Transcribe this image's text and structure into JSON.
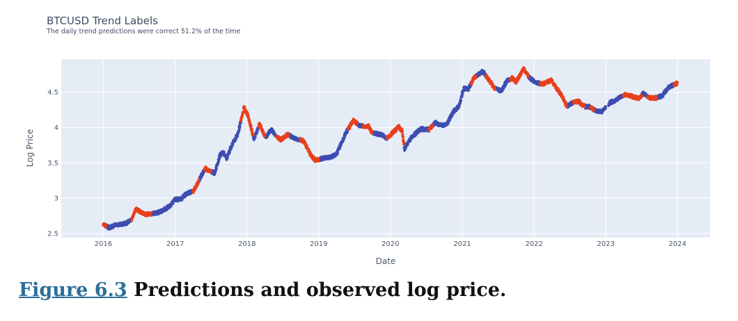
{
  "chart_data": {
    "type": "scatter",
    "title": "BTCUSD Trend Labels",
    "subtitle": "The daily trend predictions were correct 51.2% of the time",
    "xlabel": "Date",
    "ylabel": "Log Price",
    "x_tick_labels": [
      "2016",
      "2017",
      "2018",
      "2019",
      "2020",
      "2021",
      "2022",
      "2023",
      "2024"
    ],
    "y_tick_labels": [
      "2.5",
      "3",
      "3.5",
      "4",
      "4.5"
    ],
    "y_ticks": [
      2.5,
      3,
      3.5,
      4,
      4.5
    ],
    "xlim": [
      "2015-06-01",
      "2024-06-15"
    ],
    "ylim": [
      2.44,
      4.97
    ],
    "grid": true,
    "colors": {
      "background": "#e5ecf6",
      "grid": "#ffffff",
      "series_a": "#3e4db0",
      "series_b": "#e8401c"
    },
    "price_path": [
      [
        "2016-01-01",
        2.63
      ],
      [
        "2016-01-15",
        2.6
      ],
      [
        "2016-02-01",
        2.58
      ],
      [
        "2016-03-01",
        2.62
      ],
      [
        "2016-04-01",
        2.63
      ],
      [
        "2016-05-01",
        2.65
      ],
      [
        "2016-05-25",
        2.69
      ],
      [
        "2016-06-15",
        2.85
      ],
      [
        "2016-07-01",
        2.82
      ],
      [
        "2016-08-01",
        2.77
      ],
      [
        "2016-09-01",
        2.78
      ],
      [
        "2016-10-01",
        2.79
      ],
      [
        "2016-11-01",
        2.83
      ],
      [
        "2016-12-01",
        2.88
      ],
      [
        "2017-01-01",
        2.98
      ],
      [
        "2017-02-01",
        2.99
      ],
      [
        "2017-03-01",
        3.07
      ],
      [
        "2017-04-01",
        3.09
      ],
      [
        "2017-05-01",
        3.24
      ],
      [
        "2017-06-01",
        3.42
      ],
      [
        "2017-07-01",
        3.38
      ],
      [
        "2017-07-20",
        3.35
      ],
      [
        "2017-08-15",
        3.6
      ],
      [
        "2017-09-01",
        3.65
      ],
      [
        "2017-09-20",
        3.56
      ],
      [
        "2017-10-15",
        3.75
      ],
      [
        "2017-11-15",
        3.9
      ],
      [
        "2017-12-17",
        4.28
      ],
      [
        "2018-01-05",
        4.18
      ],
      [
        "2018-02-06",
        3.84
      ],
      [
        "2018-03-05",
        4.05
      ],
      [
        "2018-04-05",
        3.86
      ],
      [
        "2018-05-05",
        3.97
      ],
      [
        "2018-06-20",
        3.82
      ],
      [
        "2018-07-25",
        3.9
      ],
      [
        "2018-09-01",
        3.85
      ],
      [
        "2018-10-15",
        3.81
      ],
      [
        "2018-11-20",
        3.62
      ],
      [
        "2018-12-15",
        3.53
      ],
      [
        "2019-01-15",
        3.56
      ],
      [
        "2019-03-01",
        3.58
      ],
      [
        "2019-04-01",
        3.62
      ],
      [
        "2019-05-15",
        3.9
      ],
      [
        "2019-06-26",
        4.1
      ],
      [
        "2019-08-01",
        4.02
      ],
      [
        "2019-09-10",
        4.02
      ],
      [
        "2019-10-01",
        3.92
      ],
      [
        "2019-11-15",
        3.9
      ],
      [
        "2019-12-15",
        3.85
      ],
      [
        "2020-02-12",
        4.01
      ],
      [
        "2020-03-01",
        3.95
      ],
      [
        "2020-03-13",
        3.7
      ],
      [
        "2020-04-15",
        3.85
      ],
      [
        "2020-06-01",
        3.98
      ],
      [
        "2020-07-15",
        3.97
      ],
      [
        "2020-08-15",
        4.07
      ],
      [
        "2020-09-15",
        4.03
      ],
      [
        "2020-10-15",
        4.05
      ],
      [
        "2020-11-15",
        4.22
      ],
      [
        "2020-12-15",
        4.3
      ],
      [
        "2021-01-08",
        4.55
      ],
      [
        "2021-02-01",
        4.55
      ],
      [
        "2021-03-01",
        4.7
      ],
      [
        "2021-04-14",
        4.8
      ],
      [
        "2021-05-15",
        4.68
      ],
      [
        "2021-06-15",
        4.55
      ],
      [
        "2021-07-20",
        4.52
      ],
      [
        "2021-08-15",
        4.66
      ],
      [
        "2021-09-10",
        4.7
      ],
      [
        "2021-10-01",
        4.65
      ],
      [
        "2021-11-10",
        4.83
      ],
      [
        "2021-12-10",
        4.7
      ],
      [
        "2022-01-15",
        4.63
      ],
      [
        "2022-02-15",
        4.62
      ],
      [
        "2022-03-28",
        4.67
      ],
      [
        "2022-04-15",
        4.6
      ],
      [
        "2022-05-15",
        4.48
      ],
      [
        "2022-06-18",
        4.3
      ],
      [
        "2022-07-15",
        4.35
      ],
      [
        "2022-08-15",
        4.37
      ],
      [
        "2022-09-15",
        4.3
      ],
      [
        "2022-10-15",
        4.29
      ],
      [
        "2022-11-10",
        4.23
      ],
      [
        "2022-12-15",
        4.23
      ],
      [
        "2023-01-20",
        4.35
      ],
      [
        "2023-02-15",
        4.38
      ],
      [
        "2023-03-20",
        4.44
      ],
      [
        "2023-04-15",
        4.47
      ],
      [
        "2023-05-15",
        4.44
      ],
      [
        "2023-06-15",
        4.41
      ],
      [
        "2023-07-10",
        4.48
      ],
      [
        "2023-08-15",
        4.42
      ],
      [
        "2023-09-15",
        4.42
      ],
      [
        "2023-10-15",
        4.45
      ],
      [
        "2023-11-15",
        4.57
      ],
      [
        "2023-12-31",
        4.63
      ]
    ],
    "series": [
      {
        "color": "series_a",
        "segments": [
          [
            "2016-01-15",
            "2016-05-25"
          ],
          [
            "2016-09-01",
            "2017-04-01"
          ],
          [
            "2017-05-01",
            "2017-06-01"
          ],
          [
            "2017-07-01",
            "2017-12-01"
          ],
          [
            "2018-02-01",
            "2018-03-01"
          ],
          [
            "2018-04-01",
            "2018-06-01"
          ],
          [
            "2018-08-01",
            "2018-10-01"
          ],
          [
            "2019-01-01",
            "2019-06-01"
          ],
          [
            "2019-07-15",
            "2019-08-15"
          ],
          [
            "2019-10-01",
            "2019-12-15"
          ],
          [
            "2020-03-10",
            "2020-07-15"
          ],
          [
            "2020-08-01",
            "2021-02-15"
          ],
          [
            "2021-03-10",
            "2021-05-01"
          ],
          [
            "2021-06-15",
            "2021-09-01"
          ],
          [
            "2021-12-01",
            "2022-02-01"
          ],
          [
            "2022-06-15",
            "2022-07-20"
          ],
          [
            "2022-09-15",
            "2022-10-15"
          ],
          [
            "2022-11-01",
            "2022-12-31"
          ],
          [
            "2023-01-15",
            "2023-04-01"
          ],
          [
            "2023-07-01",
            "2023-08-01"
          ],
          [
            "2023-09-15",
            "2023-12-15"
          ]
        ]
      },
      {
        "color": "series_b",
        "segments": [
          [
            "2016-01-01",
            "2016-01-15"
          ],
          [
            "2016-05-25",
            "2016-09-01"
          ],
          [
            "2017-04-01",
            "2017-05-01"
          ],
          [
            "2017-06-01",
            "2017-07-01"
          ],
          [
            "2017-12-01",
            "2018-02-01"
          ],
          [
            "2018-03-01",
            "2018-04-01"
          ],
          [
            "2018-06-01",
            "2018-08-01"
          ],
          [
            "2018-10-01",
            "2019-01-01"
          ],
          [
            "2019-06-01",
            "2019-07-15"
          ],
          [
            "2019-08-15",
            "2019-10-01"
          ],
          [
            "2019-12-15",
            "2020-03-10"
          ],
          [
            "2020-07-15",
            "2020-08-01"
          ],
          [
            "2021-02-15",
            "2021-03-10"
          ],
          [
            "2021-05-01",
            "2021-06-15"
          ],
          [
            "2021-09-01",
            "2021-12-01"
          ],
          [
            "2022-02-01",
            "2022-06-15"
          ],
          [
            "2022-07-20",
            "2022-09-15"
          ],
          [
            "2022-10-15",
            "2022-11-01"
          ],
          [
            "2023-04-01",
            "2023-07-01"
          ],
          [
            "2023-08-01",
            "2023-09-15"
          ],
          [
            "2023-12-15",
            "2023-12-31"
          ]
        ]
      }
    ]
  },
  "caption": {
    "figure_label": "Figure 6.3",
    "text": " Predictions and observed log price."
  }
}
